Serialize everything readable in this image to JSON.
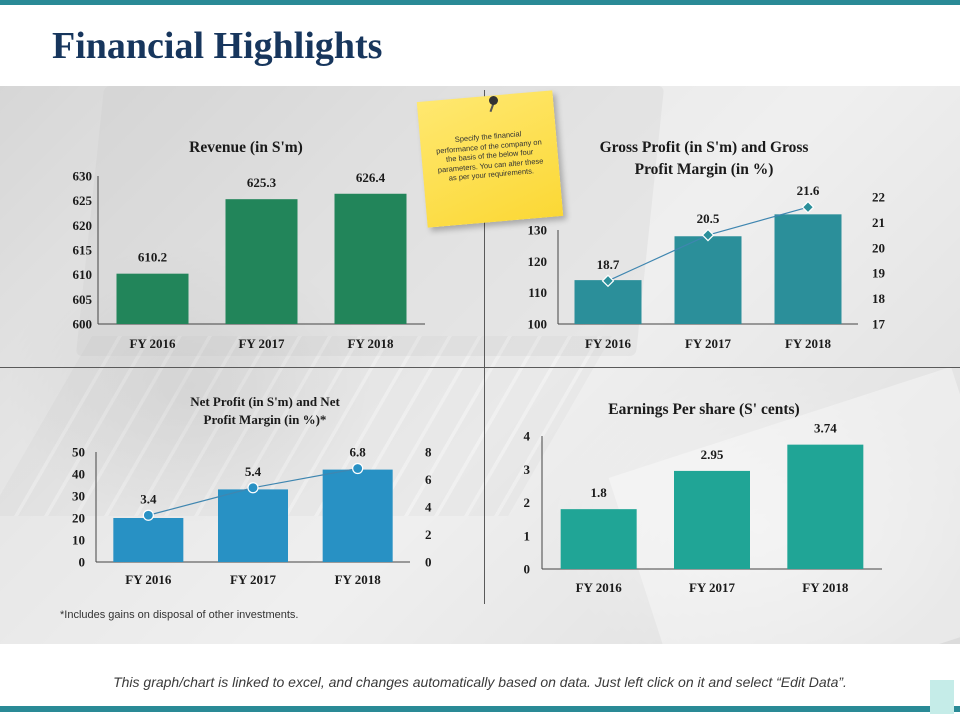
{
  "page": {
    "title": "Financial Highlights",
    "sticky_note": "Specify the financial performance of the company on the basis of the below four parameters. You can alter these as per your requirements.",
    "footnote": "*Includes gains on disposal of other investments.",
    "caption": "This graph/chart is linked to excel, and changes automatically based on data. Just left click on it and select “Edit Data”."
  },
  "colors": {
    "revenue_bar": "#22855a",
    "gross_bar": "#2b8f9a",
    "net_bar": "#2891c4",
    "eps_bar": "#20a596",
    "line": "#3f86b0"
  },
  "chart_data": [
    {
      "id": "revenue",
      "type": "bar",
      "title": "Revenue (in S'm)",
      "categories": [
        "FY 2016",
        "FY 2017",
        "FY 2018"
      ],
      "values": [
        610.2,
        625.3,
        626.4
      ],
      "value_labels": [
        "610.2",
        "625.3",
        "626.4"
      ],
      "ylim": [
        600,
        630
      ],
      "yticks": [
        "600",
        "605",
        "610",
        "615",
        "620",
        "625",
        "630"
      ],
      "grid": false
    },
    {
      "id": "gross_profit",
      "type": "bar",
      "title": "Gross Profit (in S'm) and Gross Profit Margin (in %)",
      "categories": [
        "FY 2016",
        "FY 2017",
        "FY 2018"
      ],
      "series": [
        {
          "name": "Gross Profit (in S'm)",
          "type": "bar",
          "axis": "left",
          "values": [
            114,
            128,
            135
          ]
        },
        {
          "name": "Gross Profit Margin (in %)",
          "type": "line",
          "axis": "right",
          "values": [
            18.7,
            20.5,
            21.6
          ],
          "labels": [
            "18.7",
            "20.5",
            "21.6"
          ]
        }
      ],
      "ylim": [
        100,
        130
      ],
      "yticks": [
        "100",
        "110",
        "120",
        "130"
      ],
      "y2lim": [
        17,
        22
      ],
      "y2ticks": [
        "17",
        "18",
        "19",
        "20",
        "21",
        "22"
      ],
      "grid": false
    },
    {
      "id": "net_profit",
      "type": "bar",
      "title": "Net Profit (in S'm) and Net Profit Margin (in %)*",
      "categories": [
        "FY 2016",
        "FY 2017",
        "FY 2018"
      ],
      "series": [
        {
          "name": "Net Profit (in S'm)",
          "type": "bar",
          "axis": "left",
          "values": [
            20,
            33,
            42
          ]
        },
        {
          "name": "Net Profit Margin (in %)",
          "type": "line",
          "axis": "right",
          "values": [
            3.4,
            5.4,
            6.8
          ],
          "labels": [
            "3.4",
            "5.4",
            "6.8"
          ]
        }
      ],
      "ylim": [
        0,
        50
      ],
      "yticks": [
        "0",
        "10",
        "20",
        "30",
        "40",
        "50"
      ],
      "y2lim": [
        0,
        8
      ],
      "y2ticks": [
        "0",
        "2",
        "4",
        "6",
        "8"
      ],
      "grid": false
    },
    {
      "id": "eps",
      "type": "bar",
      "title": "Earnings Per share (S' cents)",
      "categories": [
        "FY 2016",
        "FY 2017",
        "FY 2018"
      ],
      "values": [
        1.8,
        2.95,
        3.74
      ],
      "value_labels": [
        "1.8",
        "2.95",
        "3.74"
      ],
      "ylim": [
        0,
        4
      ],
      "yticks": [
        "0",
        "1",
        "2",
        "3",
        "4"
      ],
      "grid": false
    }
  ]
}
